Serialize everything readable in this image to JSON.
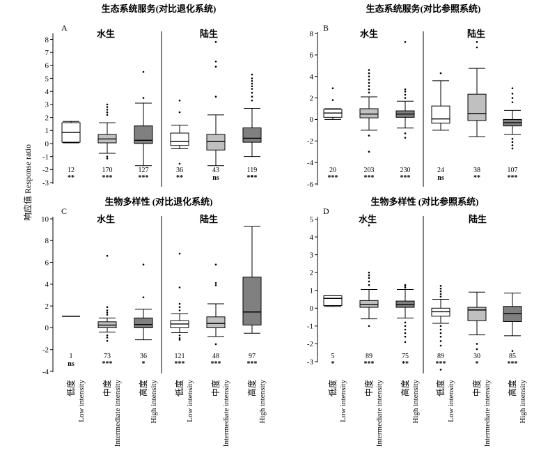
{
  "y_axis_label": "响应值 Response ratio",
  "chart_data": [
    {
      "type": "box",
      "panel_label": "A",
      "title": "生态系统服务(对比退化系统)",
      "groups": [
        "水生",
        "陆生"
      ],
      "ylim": [
        -3,
        8
      ],
      "yticks": [
        8,
        7,
        6,
        5,
        4,
        3,
        2,
        1,
        0,
        -1,
        -2,
        -3
      ],
      "boxes": [
        {
          "group_index": 0,
          "fill": "#ffffff",
          "whisker_low": 0.05,
          "q1": 0.1,
          "median": 0.85,
          "q3": 1.6,
          "whisker_high": 1.7,
          "outliers": [],
          "n": 12,
          "sig": "**"
        },
        {
          "group_index": 0,
          "fill": "#c0c0c0",
          "whisker_low": -0.75,
          "q1": 0.05,
          "median": 0.35,
          "q3": 0.7,
          "whisker_high": 1.6,
          "outliers": [
            2.2,
            2.4,
            2.6,
            2.8,
            3.0,
            -1.0,
            -1.15
          ],
          "n": 170,
          "sig": "***"
        },
        {
          "group_index": 0,
          "fill": "#808080",
          "whisker_low": -1.7,
          "q1": 0.0,
          "median": 0.25,
          "q3": 1.35,
          "whisker_high": 3.1,
          "outliers": [
            3.5,
            5.5
          ],
          "n": 127,
          "sig": "***"
        },
        {
          "group_index": 1,
          "fill": "#ffffff",
          "whisker_low": -0.4,
          "q1": -0.15,
          "median": 0.15,
          "q3": 0.8,
          "whisker_high": 1.4,
          "outliers": [
            2.4,
            3.3,
            -1.55
          ],
          "n": 36,
          "sig": "**"
        },
        {
          "group_index": 1,
          "fill": "#c0c0c0",
          "whisker_low": -1.7,
          "q1": -0.5,
          "median": 0.15,
          "q3": 0.7,
          "whisker_high": 2.2,
          "outliers": [
            3.6,
            5.9,
            6.3,
            7.8
          ],
          "n": 43,
          "sig": "ns"
        },
        {
          "group_index": 1,
          "fill": "#808080",
          "whisker_low": -1.0,
          "q1": 0.1,
          "median": 0.4,
          "q3": 1.2,
          "whisker_high": 2.7,
          "outliers": [
            3.3,
            3.6,
            3.9,
            4.2,
            4.4,
            4.6,
            4.8,
            5.0,
            5.3,
            -2.5
          ],
          "n": 119,
          "sig": "***"
        }
      ]
    },
    {
      "type": "box",
      "panel_label": "B",
      "title": "生态系统服务(对比参照系统)",
      "groups": [
        "水生",
        "陆生"
      ],
      "ylim": [
        -6,
        8
      ],
      "yticks": [
        8,
        6,
        4,
        2,
        0,
        -2,
        -4,
        -6
      ],
      "boxes": [
        {
          "group_index": 0,
          "fill": "#ffffff",
          "whisker_low": 0.0,
          "q1": 0.2,
          "median": 0.6,
          "q3": 0.95,
          "whisker_high": 1.0,
          "outliers": [
            1.8,
            2.9
          ],
          "n": 20,
          "sig": "***"
        },
        {
          "group_index": 0,
          "fill": "#c0c0c0",
          "whisker_low": -1.0,
          "q1": 0.15,
          "median": 0.5,
          "q3": 1.0,
          "whisker_high": 2.1,
          "outliers": [
            2.5,
            2.8,
            3.1,
            3.4,
            3.7,
            4.0,
            4.3,
            4.6,
            -1.5,
            -3.0
          ],
          "n": 203,
          "sig": "***"
        },
        {
          "group_index": 0,
          "fill": "#808080",
          "whisker_low": -0.8,
          "q1": 0.2,
          "median": 0.5,
          "q3": 0.8,
          "whisker_high": 1.7,
          "outliers": [
            2.0,
            2.3,
            2.6,
            2.8,
            7.2,
            -1.3,
            -1.7
          ],
          "n": 230,
          "sig": "***"
        },
        {
          "group_index": 1,
          "fill": "#ffffff",
          "whisker_low": -1.0,
          "q1": -0.35,
          "median": 0.05,
          "q3": 1.25,
          "whisker_high": 3.6,
          "outliers": [
            4.3
          ],
          "n": 24,
          "sig": "ns"
        },
        {
          "group_index": 1,
          "fill": "#c0c0c0",
          "whisker_low": -1.6,
          "q1": -0.1,
          "median": 0.55,
          "q3": 2.35,
          "whisker_high": 4.75,
          "outliers": [
            6.7,
            7.2
          ],
          "n": 38,
          "sig": "**"
        },
        {
          "group_index": 1,
          "fill": "#808080",
          "whisker_low": -1.4,
          "q1": -0.6,
          "median": -0.3,
          "q3": 0.0,
          "whisker_high": 0.85,
          "outliers": [
            1.6,
            2.0,
            2.4,
            2.9,
            -1.8,
            -2.1,
            -2.4,
            -2.7
          ],
          "n": 107,
          "sig": "***"
        }
      ]
    },
    {
      "type": "box",
      "panel_label": "C",
      "title": "生物多样性 (对比退化系统)",
      "groups": [
        "水生",
        "陆生"
      ],
      "ylim": [
        -4,
        10
      ],
      "yticks": [
        10,
        8,
        6,
        4,
        2,
        0,
        -2,
        -4
      ],
      "categories": [
        {
          "cn": "低度",
          "en": "Low intensity"
        },
        {
          "cn": "中度",
          "en": "Intermediate intensity"
        },
        {
          "cn": "高度",
          "en": "High intensity"
        },
        {
          "cn": "低度",
          "en": "Low intensity"
        },
        {
          "cn": "中度",
          "en": "Intermediate intensity"
        },
        {
          "cn": "高度",
          "en": "High intensity"
        }
      ],
      "boxes": [
        {
          "group_index": 0,
          "fill": "#ffffff",
          "whisker_low": 1.05,
          "q1": 1.05,
          "median": 1.05,
          "q3": 1.05,
          "whisker_high": 1.05,
          "outliers": [],
          "n": 1,
          "sig": "ns"
        },
        {
          "group_index": 0,
          "fill": "#c0c0c0",
          "whisker_low": -0.4,
          "q1": 0.0,
          "median": 0.25,
          "q3": 0.55,
          "whisker_high": 0.9,
          "outliers": [
            1.2,
            1.4,
            1.6,
            1.9,
            6.6,
            -0.7,
            -0.9,
            -1.2
          ],
          "n": 73,
          "sig": "***"
        },
        {
          "group_index": 0,
          "fill": "#808080",
          "whisker_low": -1.1,
          "q1": 0.0,
          "median": 0.3,
          "q3": 0.9,
          "whisker_high": 1.7,
          "outliers": [
            2.8,
            5.8
          ],
          "n": 36,
          "sig": "*"
        },
        {
          "group_index": 1,
          "fill": "#ffffff",
          "whisker_low": -0.45,
          "q1": 0.0,
          "median": 0.35,
          "q3": 0.65,
          "whisker_high": 1.3,
          "outliers": [
            1.6,
            1.9,
            2.2,
            3.7,
            6.8,
            -0.7,
            -0.95,
            -1.1
          ],
          "n": 121,
          "sig": "***"
        },
        {
          "group_index": 1,
          "fill": "#c0c0c0",
          "whisker_low": -0.8,
          "q1": 0.0,
          "median": 0.4,
          "q3": 1.0,
          "whisker_high": 2.2,
          "outliers": [
            3.9,
            4.1,
            5.8,
            -1.5
          ],
          "n": 48,
          "sig": "***"
        },
        {
          "group_index": 1,
          "fill": "#808080",
          "whisker_low": -0.5,
          "q1": 0.25,
          "median": 1.45,
          "q3": 4.65,
          "whisker_high": 9.3,
          "outliers": [],
          "n": 97,
          "sig": "***"
        }
      ]
    },
    {
      "type": "box",
      "panel_label": "D",
      "title": "生物多样性 (对比参照系统)",
      "groups": [
        "水生",
        "陆生"
      ],
      "ylim": [
        -3,
        5
      ],
      "yticks": [
        5,
        4,
        3,
        2,
        1,
        0,
        -1,
        -2,
        -3
      ],
      "categories": [
        {
          "cn": "低度",
          "en": "Low intensity"
        },
        {
          "cn": "中度",
          "en": "Intermediate intensity"
        },
        {
          "cn": "高度",
          "en": "High intensity"
        },
        {
          "cn": "低度",
          "en": "Low intensity"
        },
        {
          "cn": "中度",
          "en": "Intermediate intensity"
        },
        {
          "cn": "高度",
          "en": "High intensity"
        }
      ],
      "boxes": [
        {
          "group_index": 0,
          "fill": "#ffffff",
          "whisker_low": 0.1,
          "q1": 0.15,
          "median": 0.55,
          "q3": 0.7,
          "whisker_high": 0.7,
          "outliers": [],
          "n": 5,
          "sig": "*"
        },
        {
          "group_index": 0,
          "fill": "#c0c0c0",
          "whisker_low": -0.6,
          "q1": 0.05,
          "median": 0.2,
          "q3": 0.43,
          "whisker_high": 1.05,
          "outliers": [
            1.3,
            1.5,
            1.7,
            1.85,
            2.0,
            4.65,
            -1.0
          ],
          "n": 89,
          "sig": "***"
        },
        {
          "group_index": 0,
          "fill": "#808080",
          "whisker_low": -0.55,
          "q1": 0.05,
          "median": 0.2,
          "q3": 0.4,
          "whisker_high": 1.05,
          "outliers": [
            1.15,
            1.25,
            1.3,
            -0.8,
            -1.0,
            -1.2,
            -1.4,
            -1.6,
            -1.9
          ],
          "n": 75,
          "sig": "**"
        },
        {
          "group_index": 1,
          "fill": "#ffffff",
          "whisker_low": -0.85,
          "q1": -0.45,
          "median": -0.2,
          "q3": 0.0,
          "whisker_high": 0.5,
          "outliers": [
            0.65,
            0.8,
            0.95,
            1.1,
            1.25,
            -1.0,
            -1.2,
            -1.4,
            -1.6,
            -1.85,
            -2.1,
            -3.45
          ],
          "n": 89,
          "sig": "***"
        },
        {
          "group_index": 1,
          "fill": "#c0c0c0",
          "whisker_low": -1.5,
          "q1": -0.7,
          "median": -0.1,
          "q3": 0.05,
          "whisker_high": 0.9,
          "outliers": [
            -2.0,
            -2.3
          ],
          "n": 30,
          "sig": "*"
        },
        {
          "group_index": 1,
          "fill": "#808080",
          "whisker_low": -1.55,
          "q1": -0.75,
          "median": -0.3,
          "q3": 0.1,
          "whisker_high": 0.85,
          "outliers": [
            -2.4
          ],
          "n": 85,
          "sig": "***"
        }
      ]
    }
  ]
}
